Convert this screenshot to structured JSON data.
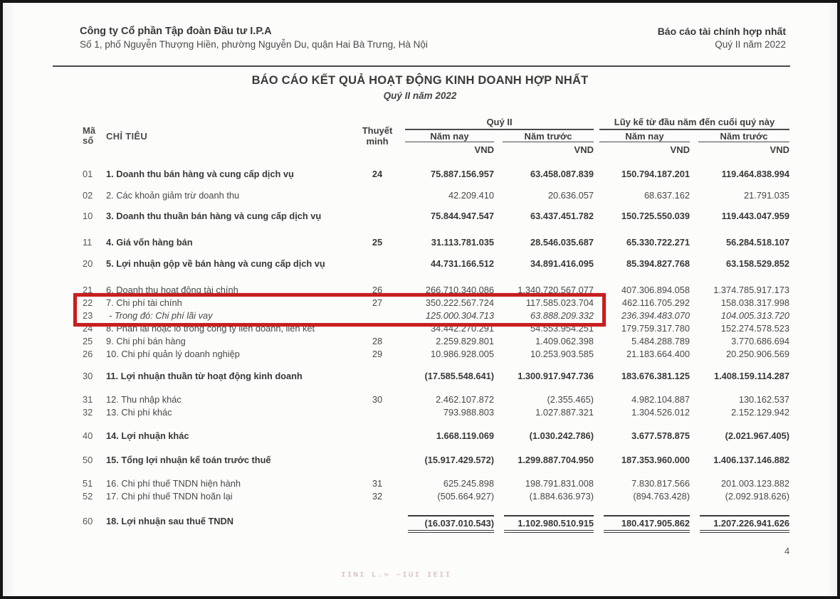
{
  "letterhead": {
    "company": "Công ty Cổ phần Tập đoàn Đầu tư I.P.A",
    "address": "Số 1, phố Nguyễn Thượng Hiền, phường Nguyễn Du, quận Hai Bà Trưng, Hà Nội",
    "report_type": "Báo cáo tài chính hợp nhất",
    "period": "Quý II năm 2022"
  },
  "title": "BÁO CÁO KẾT QUẢ HOẠT ĐỘNG KINH DOANH HỢP NHẤT",
  "subtitle": "Quý II năm 2022",
  "page_number": "4",
  "artifacts": {
    "bleed_marks": "IINI  L.> ~IUI IEII"
  },
  "highlight": {
    "color": "#c81f1f",
    "rows": [
      "22",
      "23"
    ]
  },
  "table": {
    "headers": {
      "code_line1": "Mã",
      "code_line2": "số",
      "item": "CHỈ TIÊU",
      "note_line1": "Thuyết",
      "note_line2": "minh",
      "group_quarter": "Quý II",
      "group_ytd": "Lũy kế từ đầu năm đến cuối quý này",
      "col_current": "Năm nay",
      "col_prior": "Năm trước",
      "currency": "VND"
    },
    "rows": [
      {
        "code": "01",
        "name": "1. Doanh thu bán hàng và cung cấp dịch vụ",
        "note": "24",
        "q_cur": "75.887.156.957",
        "q_pri": "63.458.087.839",
        "y_cur": "150.794.187.201",
        "y_pri": "119.464.838.994",
        "style": "bold",
        "total": false
      },
      {
        "code": "02",
        "name": "2. Các khoản giảm trừ doanh thu",
        "note": "",
        "q_cur": "42.209.410",
        "q_pri": "20.636.057",
        "y_cur": "68.637.162",
        "y_pri": "21.791.035",
        "style": "regular",
        "total": false
      },
      {
        "code": "10",
        "name": "3. Doanh thu thuần bán hàng và cung cấp dịch vụ",
        "note": "",
        "q_cur": "75.844.947.547",
        "q_pri": "63.437.451.782",
        "y_cur": "150.725.550.039",
        "y_pri": "119.443.047.959",
        "style": "bold",
        "total": false
      },
      {
        "code": "11",
        "name": "4. Giá vốn hàng bán",
        "note": "25",
        "q_cur": "31.113.781.035",
        "q_pri": "28.546.035.687",
        "y_cur": "65.330.722.271",
        "y_pri": "56.284.518.107",
        "style": "bold",
        "total": false
      },
      {
        "code": "20",
        "name": "5. Lợi nhuận gộp về bán hàng và cung cấp dịch vụ",
        "note": "",
        "q_cur": "44.731.166.512",
        "q_pri": "34.891.416.095",
        "y_cur": "85.394.827.768",
        "y_pri": "63.158.529.852",
        "style": "bold",
        "total": false
      },
      {
        "code": "21",
        "name": "6. Doanh thu hoạt động tài chính",
        "note": "26",
        "q_cur": "266.710.340.086",
        "q_pri": "1.340.720.567.077",
        "y_cur": "407.306.894.058",
        "y_pri": "1.374.785.917.173",
        "style": "regular",
        "total": false
      },
      {
        "code": "22",
        "name": "7. Chi phí tài chính",
        "note": "27",
        "q_cur": "350.222.567.724",
        "q_pri": "117.585.023.704",
        "y_cur": "462.116.705.292",
        "y_pri": "158.038.317.998",
        "style": "regular",
        "total": false
      },
      {
        "code": "23",
        "name": "- Trong đó: Chi phí lãi vay",
        "note": "",
        "q_cur": "125.000.304.713",
        "q_pri": "63.888.209.332",
        "y_cur": "236.394.483.070",
        "y_pri": "104.005.313.720",
        "style": "italic",
        "total": false
      },
      {
        "code": "24",
        "name": "8. Phần lãi hoặc lỗ trong công ty liên doanh, liên kết",
        "note": "",
        "q_cur": "34.442.270.291",
        "q_pri": "54.553.954.251",
        "y_cur": "179.759.317.780",
        "y_pri": "152.274.578.523",
        "style": "regular",
        "total": false
      },
      {
        "code": "25",
        "name": "9. Chi phí bán hàng",
        "note": "28",
        "q_cur": "2.259.829.801",
        "q_pri": "1.409.062.398",
        "y_cur": "5.484.288.789",
        "y_pri": "3.770.686.694",
        "style": "regular",
        "total": false
      },
      {
        "code": "26",
        "name": "10. Chi phí quản lý doanh nghiệp",
        "note": "29",
        "q_cur": "10.986.928.005",
        "q_pri": "10.253.903.585",
        "y_cur": "21.183.664.400",
        "y_pri": "20.250.906.569",
        "style": "regular",
        "total": false
      },
      {
        "code": "30",
        "name": "11. Lợi nhuận thuần từ hoạt động kinh doanh",
        "note": "",
        "q_cur": "(17.585.548.641)",
        "q_pri": "1.300.917.947.736",
        "y_cur": "183.676.381.125",
        "y_pri": "1.408.159.114.287",
        "style": "bold",
        "total": false
      },
      {
        "code": "31",
        "name": "12. Thu nhập khác",
        "note": "30",
        "q_cur": "2.462.107.872",
        "q_pri": "(2.355.465)",
        "y_cur": "4.982.104.887",
        "y_pri": "130.162.537",
        "style": "regular",
        "total": false
      },
      {
        "code": "32",
        "name": "13. Chi phí khác",
        "note": "",
        "q_cur": "793.988.803",
        "q_pri": "1.027.887.321",
        "y_cur": "1.304.526.012",
        "y_pri": "2.152.129.942",
        "style": "regular",
        "total": false
      },
      {
        "code": "40",
        "name": "14. Lợi nhuận khác",
        "note": "",
        "q_cur": "1.668.119.069",
        "q_pri": "(1.030.242.786)",
        "y_cur": "3.677.578.875",
        "y_pri": "(2.021.967.405)",
        "style": "bold",
        "total": false
      },
      {
        "code": "50",
        "name": "15. Tổng lợi nhuận kế toán trước thuế",
        "note": "",
        "q_cur": "(15.917.429.572)",
        "q_pri": "1.299.887.704.950",
        "y_cur": "187.353.960.000",
        "y_pri": "1.406.137.146.882",
        "style": "bold",
        "total": false
      },
      {
        "code": "51",
        "name": "16. Chi phí thuế TNDN hiện hành",
        "note": "31",
        "q_cur": "625.245.898",
        "q_pri": "198.791.831.008",
        "y_cur": "7.830.817.566",
        "y_pri": "201.003.123.882",
        "style": "regular",
        "total": false
      },
      {
        "code": "52",
        "name": "17. Chi phí thuế TNDN hoãn lại",
        "note": "32",
        "q_cur": "(505.664.927)",
        "q_pri": "(1.884.636.973)",
        "y_cur": "(894.763.428)",
        "y_pri": "(2.092.918.626)",
        "style": "regular",
        "total": false
      },
      {
        "code": "60",
        "name": "18. Lợi nhuận sau thuế TNDN",
        "note": "",
        "q_cur": "(16.037.010.543)",
        "q_pri": "1.102.980.510.915",
        "y_cur": "180.417.905.862",
        "y_pri": "1.207.226.941.626",
        "style": "bold",
        "total": true
      }
    ]
  }
}
